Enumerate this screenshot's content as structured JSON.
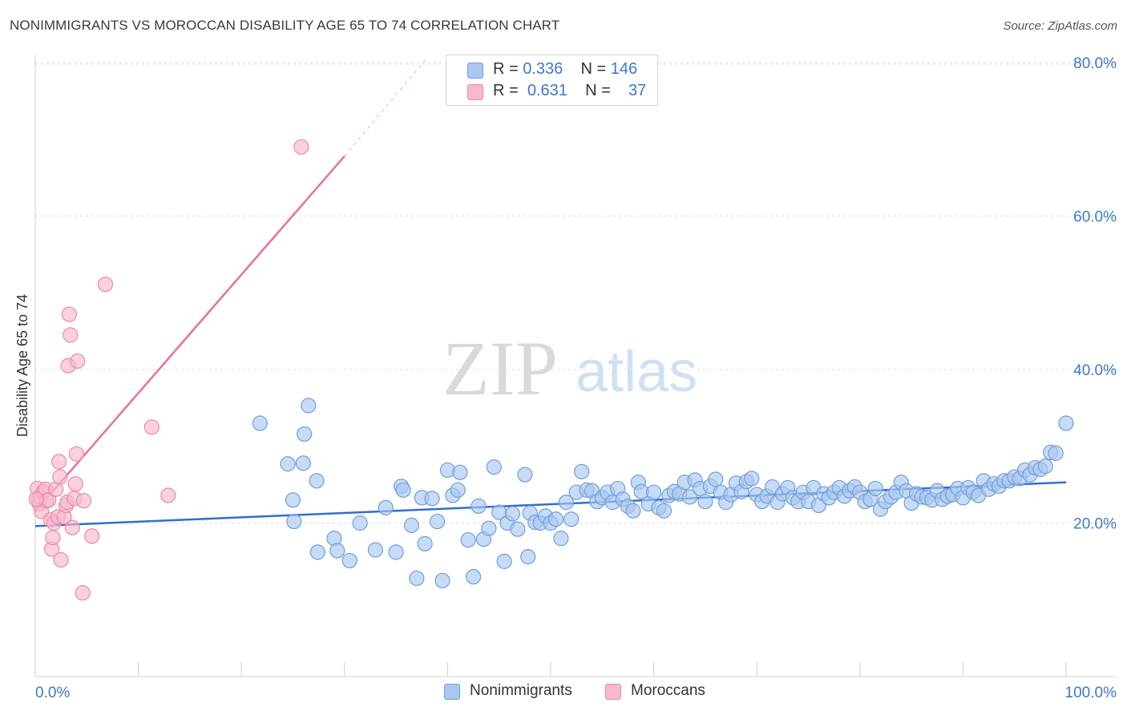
{
  "title": "NONIMMIGRANTS VS MOROCCAN DISABILITY AGE 65 TO 74 CORRELATION CHART",
  "source": "Source: ZipAtlas.com",
  "watermark": {
    "zip": "ZIP",
    "atlas": "atlas"
  },
  "legend": {
    "rows": [
      {
        "r_label": "R =",
        "r_value": "0.336",
        "n_label": "N =",
        "n_value": "146",
        "color": "#a9c8f0",
        "border": "#6f9fd8"
      },
      {
        "r_label": "R =",
        "r_value": "0.631",
        "n_label": "N =",
        "n_value": "37",
        "color": "#f7b8cb",
        "border": "#e98aa8"
      }
    ]
  },
  "chart_data": {
    "type": "scatter",
    "title": "NONIMMIGRANTS VS MOROCCAN DISABILITY AGE 65 TO 74 CORRELATION CHART",
    "xlabel": "",
    "ylabel": "Disability Age 65 to 74",
    "xlim": [
      0,
      100
    ],
    "ylim": [
      0,
      85
    ],
    "x_tick_labels": [
      "0.0%",
      "100.0%"
    ],
    "y_ticks": [
      20,
      40,
      60,
      80
    ],
    "y_tick_labels": [
      "20.0%",
      "40.0%",
      "60.0%",
      "80.0%"
    ],
    "grid": "horizontal dashed",
    "legend_position": "top-center",
    "series": [
      {
        "name": "Nonimmigrants",
        "color": "#a9c8f0",
        "edge": "#6f9fd8",
        "trend": {
          "x0": 0,
          "y0": 19.6,
          "x1": 100,
          "y1": 25.3,
          "color": "#2f6fcf"
        },
        "points": [
          [
            21.8,
            33.0
          ],
          [
            26.5,
            35.3
          ],
          [
            26.1,
            31.6
          ],
          [
            24.5,
            27.7
          ],
          [
            26.0,
            27.8
          ],
          [
            27.3,
            25.5
          ],
          [
            25.0,
            23.0
          ],
          [
            25.1,
            20.2
          ],
          [
            27.4,
            16.2
          ],
          [
            29.0,
            18.0
          ],
          [
            29.3,
            16.4
          ],
          [
            30.5,
            15.1
          ],
          [
            31.5,
            20.0
          ],
          [
            33.0,
            16.5
          ],
          [
            34.0,
            22.0
          ],
          [
            35.0,
            16.2
          ],
          [
            35.5,
            24.8
          ],
          [
            35.7,
            24.3
          ],
          [
            36.5,
            19.7
          ],
          [
            37.0,
            12.8
          ],
          [
            37.5,
            23.3
          ],
          [
            37.8,
            17.3
          ],
          [
            38.5,
            23.2
          ],
          [
            39.0,
            20.2
          ],
          [
            39.5,
            12.5
          ],
          [
            40.0,
            26.9
          ],
          [
            40.5,
            23.6
          ],
          [
            41.0,
            24.3
          ],
          [
            41.2,
            26.6
          ],
          [
            42.0,
            17.8
          ],
          [
            42.5,
            13.0
          ],
          [
            43.0,
            22.2
          ],
          [
            43.5,
            17.9
          ],
          [
            44.0,
            19.3
          ],
          [
            44.5,
            27.3
          ],
          [
            45.0,
            21.4
          ],
          [
            45.5,
            15.0
          ],
          [
            45.8,
            20.0
          ],
          [
            46.3,
            21.2
          ],
          [
            46.8,
            19.2
          ],
          [
            47.5,
            26.3
          ],
          [
            47.8,
            15.6
          ],
          [
            48.0,
            21.3
          ],
          [
            48.5,
            20.1
          ],
          [
            49.0,
            20.0
          ],
          [
            49.5,
            20.9
          ],
          [
            50.0,
            20.0
          ],
          [
            50.5,
            20.5
          ],
          [
            51.0,
            18.0
          ],
          [
            51.5,
            22.7
          ],
          [
            52.0,
            20.5
          ],
          [
            52.5,
            24.0
          ],
          [
            53.0,
            26.7
          ],
          [
            53.5,
            24.3
          ],
          [
            54.0,
            24.2
          ],
          [
            54.5,
            22.8
          ],
          [
            55.0,
            23.3
          ],
          [
            55.5,
            24.0
          ],
          [
            56.0,
            22.7
          ],
          [
            56.5,
            24.5
          ],
          [
            57.0,
            23.1
          ],
          [
            57.5,
            22.2
          ],
          [
            58.0,
            21.6
          ],
          [
            58.5,
            25.3
          ],
          [
            58.8,
            24.1
          ],
          [
            59.5,
            22.5
          ],
          [
            60.0,
            24.0
          ],
          [
            60.5,
            22.0
          ],
          [
            61.0,
            21.6
          ],
          [
            61.5,
            23.6
          ],
          [
            62.0,
            24.1
          ],
          [
            62.5,
            23.8
          ],
          [
            63.0,
            25.3
          ],
          [
            63.5,
            23.4
          ],
          [
            64.0,
            25.6
          ],
          [
            64.5,
            24.5
          ],
          [
            65.0,
            22.8
          ],
          [
            65.5,
            24.8
          ],
          [
            66.0,
            25.7
          ],
          [
            66.5,
            24.0
          ],
          [
            67.0,
            22.7
          ],
          [
            67.5,
            23.7
          ],
          [
            68.0,
            25.2
          ],
          [
            68.5,
            24.1
          ],
          [
            69.0,
            25.4
          ],
          [
            69.5,
            25.8
          ],
          [
            70.0,
            23.7
          ],
          [
            70.5,
            22.8
          ],
          [
            71.0,
            23.5
          ],
          [
            71.5,
            24.7
          ],
          [
            72.0,
            22.7
          ],
          [
            72.5,
            23.8
          ],
          [
            73.0,
            24.6
          ],
          [
            73.5,
            23.3
          ],
          [
            74.0,
            22.8
          ],
          [
            74.5,
            24.0
          ],
          [
            75.0,
            22.8
          ],
          [
            75.5,
            24.6
          ],
          [
            76.0,
            22.3
          ],
          [
            76.5,
            23.8
          ],
          [
            77.0,
            23.3
          ],
          [
            77.5,
            24.0
          ],
          [
            78.0,
            24.6
          ],
          [
            78.5,
            23.5
          ],
          [
            79.0,
            24.2
          ],
          [
            79.5,
            24.7
          ],
          [
            80.0,
            24.0
          ],
          [
            80.5,
            22.8
          ],
          [
            81.0,
            23.1
          ],
          [
            81.5,
            24.5
          ],
          [
            82.0,
            21.8
          ],
          [
            82.5,
            22.8
          ],
          [
            83.0,
            23.4
          ],
          [
            83.5,
            24.0
          ],
          [
            84.0,
            25.3
          ],
          [
            84.5,
            24.2
          ],
          [
            85.0,
            22.6
          ],
          [
            85.5,
            23.8
          ],
          [
            86.0,
            23.4
          ],
          [
            86.5,
            23.3
          ],
          [
            87.0,
            23.0
          ],
          [
            87.5,
            24.2
          ],
          [
            88.0,
            23.1
          ],
          [
            88.5,
            23.5
          ],
          [
            89.0,
            23.7
          ],
          [
            89.5,
            24.5
          ],
          [
            90.0,
            23.3
          ],
          [
            90.5,
            24.6
          ],
          [
            91.0,
            24.0
          ],
          [
            91.5,
            23.6
          ],
          [
            92.0,
            25.5
          ],
          [
            92.5,
            24.4
          ],
          [
            93.0,
            25.1
          ],
          [
            93.5,
            24.8
          ],
          [
            94.0,
            25.5
          ],
          [
            94.5,
            25.5
          ],
          [
            95.0,
            26.0
          ],
          [
            95.5,
            25.8
          ],
          [
            96.0,
            26.9
          ],
          [
            96.5,
            26.3
          ],
          [
            97.0,
            27.2
          ],
          [
            97.5,
            27.0
          ],
          [
            98.0,
            27.4
          ],
          [
            98.5,
            29.2
          ],
          [
            99.0,
            29.1
          ],
          [
            100.0,
            33.0
          ]
        ]
      },
      {
        "name": "Moroccans",
        "color": "#f7b8cb",
        "edge": "#e98aa8",
        "trend": {
          "x0": 0,
          "y0": 21.5,
          "x1": 30,
          "y1": 67.8,
          "color": "#e8709a",
          "dash_to": {
            "x": 38,
            "y": 80.6
          }
        },
        "points": [
          [
            0.2,
            24.5
          ],
          [
            0.3,
            23.0
          ],
          [
            0.4,
            22.5
          ],
          [
            0.5,
            23.4
          ],
          [
            0.6,
            21.5
          ],
          [
            0.8,
            24.1
          ],
          [
            1.0,
            24.4
          ],
          [
            1.1,
            22.9
          ],
          [
            1.3,
            23.0
          ],
          [
            1.5,
            20.4
          ],
          [
            1.6,
            16.6
          ],
          [
            1.7,
            18.1
          ],
          [
            1.8,
            20.0
          ],
          [
            2.0,
            24.4
          ],
          [
            2.2,
            20.8
          ],
          [
            2.3,
            28.0
          ],
          [
            2.4,
            26.0
          ],
          [
            2.5,
            15.2
          ],
          [
            2.8,
            20.8
          ],
          [
            3.0,
            22.3
          ],
          [
            3.1,
            22.7
          ],
          [
            3.2,
            40.5
          ],
          [
            3.3,
            47.2
          ],
          [
            3.4,
            44.5
          ],
          [
            3.6,
            19.4
          ],
          [
            3.8,
            23.2
          ],
          [
            3.9,
            25.1
          ],
          [
            4.0,
            29.0
          ],
          [
            4.1,
            41.1
          ],
          [
            4.6,
            10.9
          ],
          [
            4.7,
            22.9
          ],
          [
            5.5,
            18.3
          ],
          [
            6.8,
            51.1
          ],
          [
            11.3,
            32.5
          ],
          [
            12.9,
            23.6
          ],
          [
            25.8,
            69.0
          ],
          [
            0.1,
            23.1
          ]
        ]
      }
    ]
  },
  "bottom_legend": [
    "Nonimmigrants",
    "Moroccans"
  ]
}
